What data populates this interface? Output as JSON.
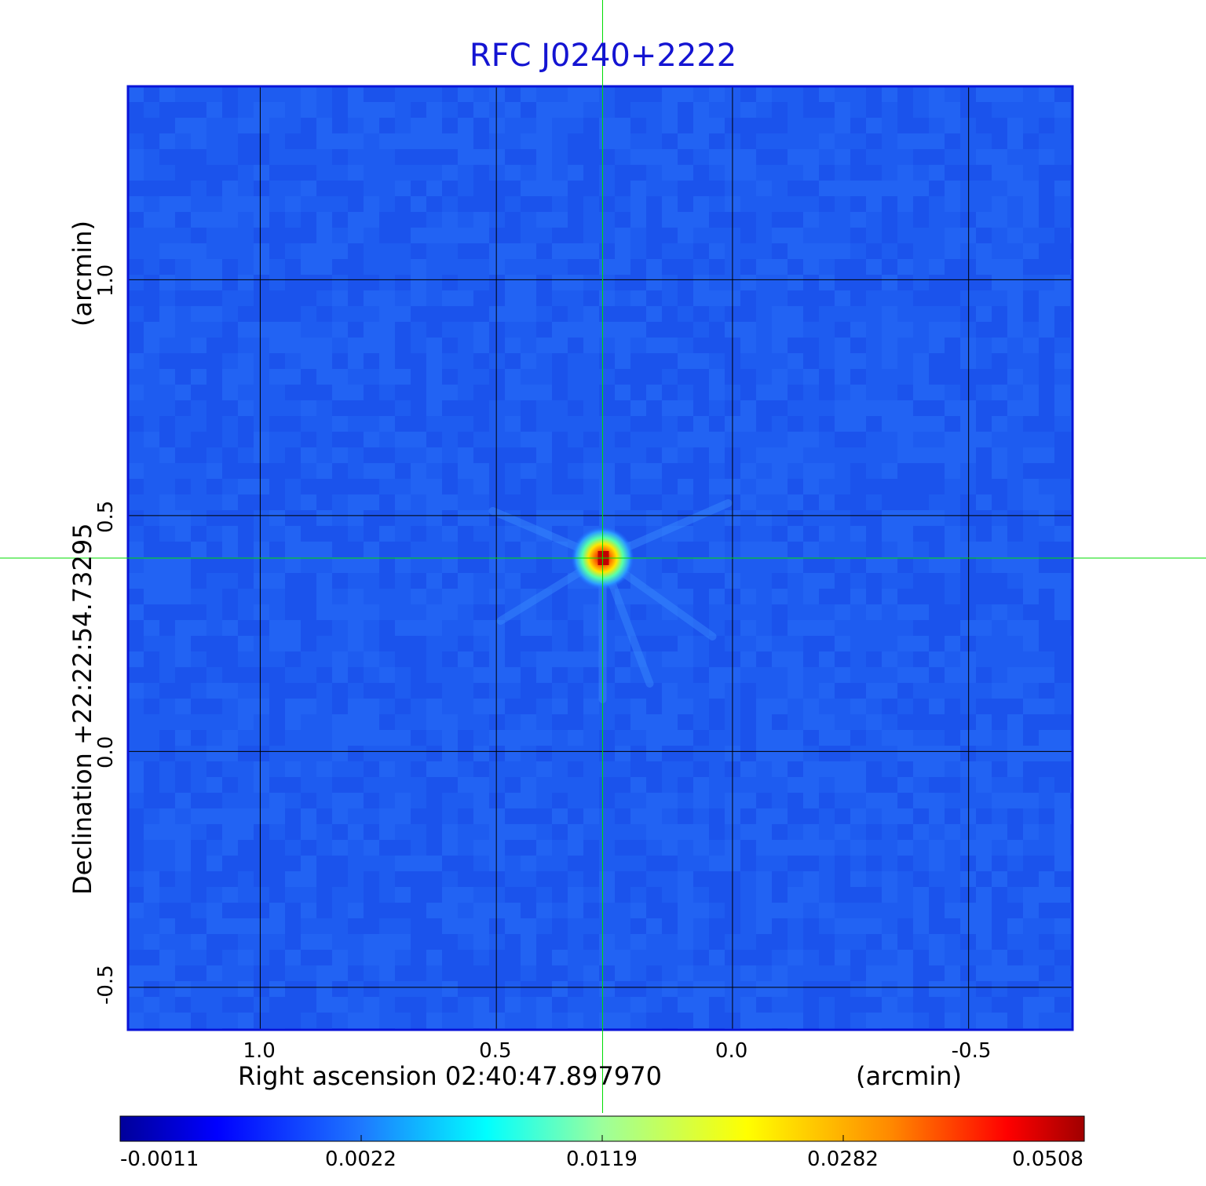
{
  "chart_data": {
    "type": "heatmap",
    "title": "RFC J0240+2222",
    "xlabel": "Right ascension  02:40:47.897970",
    "xunit": "(arcmin)",
    "ylabel": "Declination  +22:22:54.73295",
    "yunit": "(arcmin)",
    "x_ticks": [
      "1.0",
      "0.5",
      "0.0",
      "-0.5"
    ],
    "x_tick_values": [
      1.0,
      0.5,
      0.0,
      -0.5
    ],
    "y_ticks": [
      "1.0",
      "0.5",
      "0.0",
      "-0.5"
    ],
    "y_tick_values": [
      1.0,
      0.5,
      0.0,
      -0.5
    ],
    "xlim": [
      1.28,
      -0.72
    ],
    "ylim": [
      -0.59,
      1.41
    ],
    "grid": true,
    "source": {
      "x": 0.275,
      "y": 0.41,
      "peak": 0.0508
    },
    "crosshair": {
      "x": 0.275,
      "y": 0.41,
      "color": "#00dd00"
    },
    "background_level": 0.0,
    "colorbar": {
      "ticks": [
        "-0.0011",
        "0.0022",
        "0.0119",
        "0.0282",
        "0.0508"
      ],
      "tick_values": [
        -0.0011,
        0.0022,
        0.0119,
        0.0282,
        0.0508
      ],
      "colormap": "jet"
    }
  }
}
